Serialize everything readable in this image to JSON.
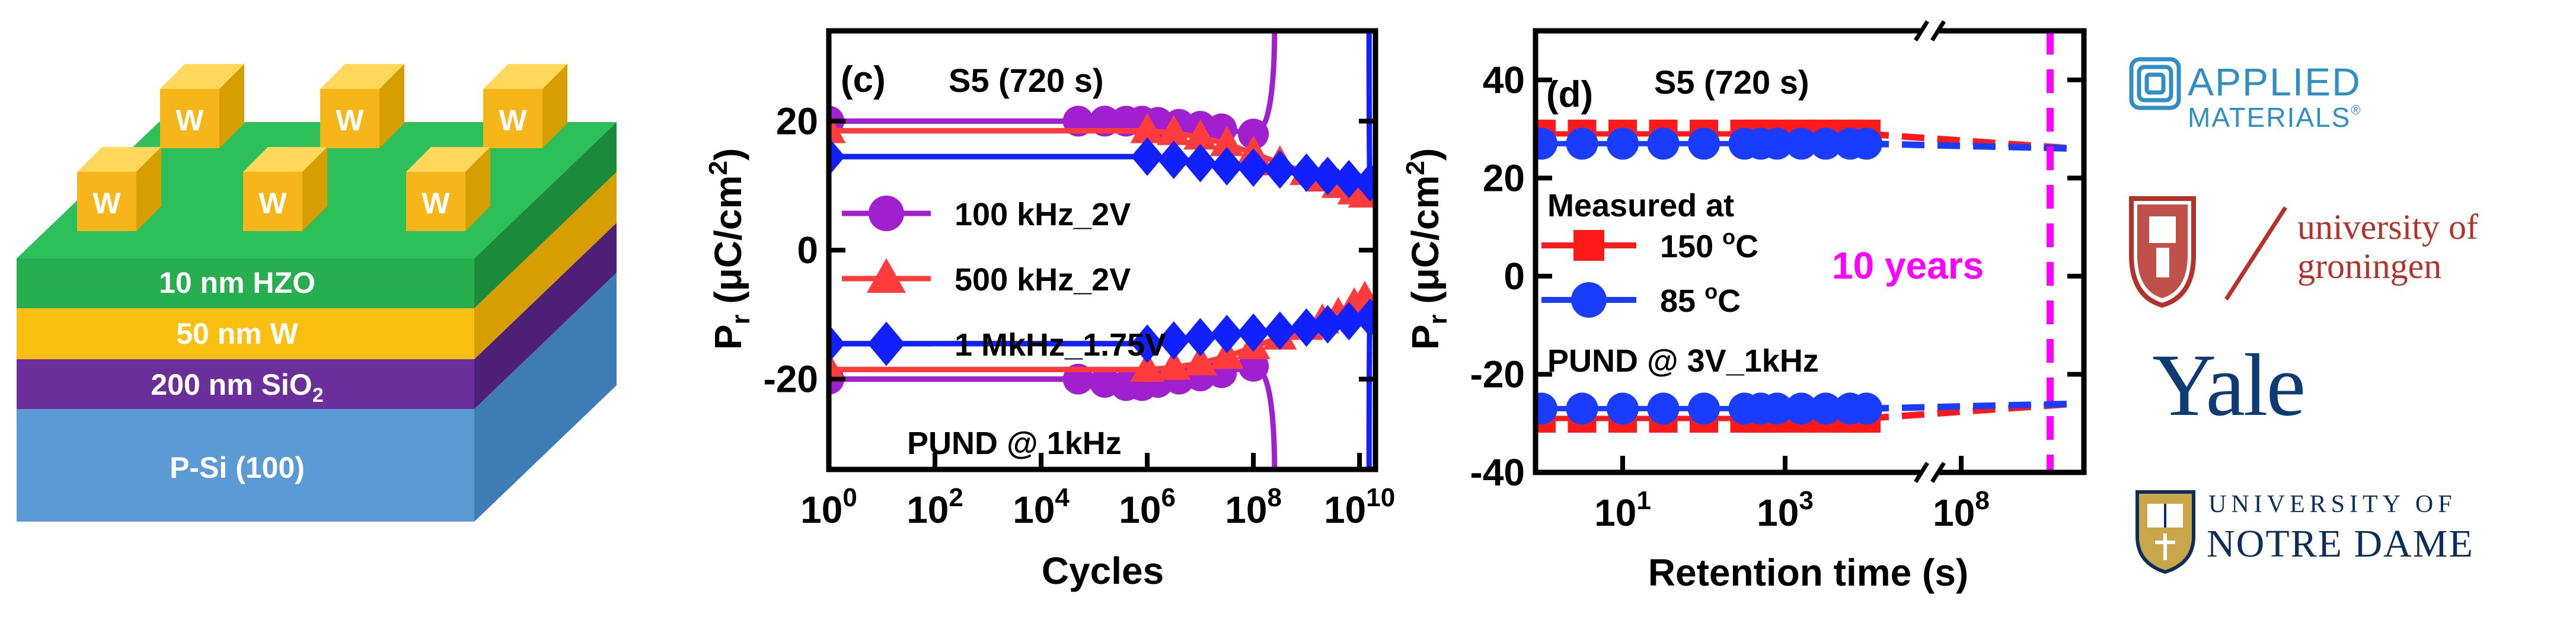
{
  "device": {
    "electrode": "W",
    "layers": [
      "10 nm HZO",
      "50 nm W",
      "200 nm SiO",
      "P-Si (100)"
    ],
    "sio2_subscript": "2",
    "colors": {
      "hzo": "#27ae4f",
      "w": "#fbbf11",
      "sio2": "#6b2f9b",
      "si": "#5b9ad4",
      "electrode": "#f6b61a"
    }
  },
  "chart_data": [
    {
      "type": "line",
      "panel": "(c)",
      "title": "S5 (720 s)",
      "annotation": "PUND @ 1kHz",
      "xlabel": "Cycles",
      "ylabel": "P",
      "ylabel_sub": "r",
      "ylabel_unit_open": " (μC/cm",
      "ylabel_unit_sup": "2",
      "ylabel_unit_close": ")",
      "xscale": "log",
      "xlim_exp": [
        0,
        10.3
      ],
      "ylim": [
        -34,
        34
      ],
      "yticks": [
        20,
        0,
        -20
      ],
      "ytick_labels": [
        "20",
        "0",
        "-20"
      ],
      "xticks_exp": [
        0,
        2,
        4,
        6,
        8,
        10
      ],
      "xtick_base": "10",
      "xtick_sups": [
        "0",
        "2",
        "4",
        "6",
        "8",
        "10"
      ],
      "series": [
        {
          "name": "100 kHz_2V",
          "color": "#a020d0",
          "marker": "circle",
          "flat_pos": 20,
          "flat_neg": -20,
          "x_exp": [
            0,
            4.7,
            5.2,
            5.6,
            5.9,
            6.2,
            6.6,
            7.0,
            7.4,
            8.0
          ],
          "pos": [
            20,
            20,
            20,
            20,
            20,
            19.8,
            19.5,
            19.2,
            18.8,
            18.0
          ],
          "neg": [
            -20,
            -20,
            -20.5,
            -21,
            -21,
            -20.5,
            -20,
            -19.5,
            -19,
            -18.0
          ],
          "breakdown_exp": 8.4
        },
        {
          "name": "500 kHz_2V",
          "color": "#ff3b3b",
          "marker": "triangle",
          "flat_pos": 18.5,
          "flat_neg": -18.5,
          "x_exp": [
            0,
            6.0,
            6.5,
            7.0,
            7.5,
            8.0,
            8.5,
            9.0,
            9.3,
            9.6,
            9.9,
            10.1
          ],
          "pos": [
            18.5,
            18.5,
            18.2,
            17.5,
            16.5,
            15.0,
            13.5,
            12.0,
            11.0,
            10.0,
            9.0,
            8.5
          ],
          "neg": [
            -18.5,
            -18.5,
            -18.2,
            -17.5,
            -16.5,
            -15.0,
            -13.5,
            -12.0,
            -11.0,
            -10.0,
            -8.5,
            -7.5
          ],
          "breakdown_exp": null
        },
        {
          "name": "1 MkHz_1.75V",
          "color": "#1020ff",
          "marker": "diamond",
          "flat_pos": 14.5,
          "flat_neg": -14.5,
          "x_exp": [
            0,
            6.0,
            6.5,
            7.0,
            7.5,
            8.0,
            8.5,
            9.0,
            9.4,
            9.8,
            10.2
          ],
          "pos": [
            14.5,
            14.5,
            14.0,
            13.5,
            13.0,
            12.8,
            12.5,
            12.0,
            11.5,
            11.0,
            10.5
          ],
          "neg": [
            -14.5,
            -14.5,
            -14.0,
            -13.5,
            -13.0,
            -12.8,
            -12.5,
            -12.0,
            -11.5,
            -11.0,
            -10.5
          ],
          "breakdown_exp": 10.18
        }
      ]
    },
    {
      "type": "line",
      "panel": "(d)",
      "title": "S5 (720 s)",
      "annotation": "PUND @ 3V_1kHz",
      "legend_title": "Measured at",
      "xlabel": "Retention time (s)",
      "ylabel": "P",
      "ylabel_sub": "r",
      "ylabel_unit_open": " (μC/cm",
      "ylabel_unit_sup": "2",
      "ylabel_unit_close": ")",
      "xscale": "log (broken axis)",
      "ylim": [
        -40,
        50
      ],
      "yticks": [
        40,
        20,
        0,
        -20,
        -40
      ],
      "ytick_labels": [
        "40",
        "20",
        "0",
        "-20",
        "-40"
      ],
      "xticks_exp": [
        1,
        3,
        8
      ],
      "xtick_base": "10",
      "xtick_sups": [
        "1",
        "3",
        "8"
      ],
      "ten_year_label": "10 years",
      "ten_year_color": "#ff00ff",
      "series": [
        {
          "name": "150 °C",
          "label_main": "150 ",
          "label_unit": "C",
          "label_sup": "o",
          "color": "#ff1a1a",
          "marker": "square",
          "x_exp": [
            0,
            0.5,
            1,
            1.5,
            2,
            2.5,
            2.7,
            2.9,
            3.2,
            3.5,
            3.8,
            4.0
          ],
          "pos": [
            29,
            29,
            29,
            29,
            29,
            29,
            29,
            29,
            29,
            29,
            29,
            29
          ],
          "neg": [
            -29,
            -29,
            -29,
            -29,
            -29,
            -29,
            -29,
            -29,
            -29,
            -29,
            -29,
            -29
          ],
          "extrap_pos_end": 26,
          "extrap_neg_end": -26
        },
        {
          "name": "85 °C",
          "label_main": "85 ",
          "label_unit": "C",
          "label_sup": "o",
          "color": "#1a3cff",
          "marker": "circle",
          "x_exp": [
            0,
            0.5,
            1,
            1.5,
            2,
            2.5,
            2.7,
            2.9,
            3.2,
            3.5,
            3.8,
            4.0
          ],
          "pos": [
            27,
            27,
            27,
            27,
            27,
            27,
            27,
            27,
            27,
            27,
            27,
            27
          ],
          "neg": [
            -27,
            -27,
            -27,
            -27,
            -27,
            -27,
            -27,
            -27,
            -27,
            -27,
            -27,
            -27
          ],
          "extrap_pos_end": 26,
          "extrap_neg_end": -26
        }
      ]
    }
  ],
  "logos": {
    "applied_materials": {
      "line1": "APPLIED",
      "line2": "MATERIALS",
      "mark": "®",
      "color": "#2f8fc4"
    },
    "groningen": {
      "line1": "university of",
      "line2": "groningen",
      "color": "#b5322a"
    },
    "yale": {
      "text": "Yale",
      "color": "#0e3b74"
    },
    "notre_dame": {
      "line1": "UNIVERSITY OF",
      "line2": "NOTRE DAME",
      "color": "#0c2e5a"
    }
  }
}
